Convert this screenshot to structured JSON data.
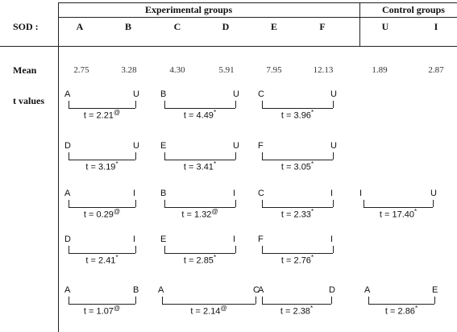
{
  "header": {
    "experimental": "Experimental groups",
    "control": "Control groups",
    "sod": "SOD :"
  },
  "columns": [
    "A",
    "B",
    "C",
    "D",
    "E",
    "F",
    "U",
    "I"
  ],
  "mean": {
    "label": "Mean",
    "values": [
      "2.75",
      "3.28",
      "4.30",
      "5.91",
      "7.95",
      "12.13",
      "1.89",
      "2.87"
    ]
  },
  "t_label": "t values",
  "comparisons": [
    [
      {
        "left": "A",
        "right": "U",
        "t": "t = 2.21@"
      },
      {
        "left": "B",
        "right": "U",
        "t": "t = 4.49*"
      },
      {
        "left": "C",
        "right": "U",
        "t": "t = 3.96*"
      }
    ],
    [
      {
        "left": "D",
        "right": "U",
        "t": "t = 3.19*"
      },
      {
        "left": "E",
        "right": "U",
        "t": "t = 3.41*"
      },
      {
        "left": "F",
        "right": "U",
        "t": "t = 3.05*"
      }
    ],
    [
      {
        "left": "A",
        "right": "I",
        "t": "t = 0.29@"
      },
      {
        "left": "B",
        "right": "I",
        "t": "t = 1.32@"
      },
      {
        "left": "C",
        "right": "I",
        "t": "t = 2.33*"
      },
      {
        "left": "I",
        "right": "U",
        "t": "t = 17.40*"
      }
    ],
    [
      {
        "left": "D",
        "right": "I",
        "t": "t = 2.41*"
      },
      {
        "left": "E",
        "right": "I",
        "t": "t = 2.85*"
      },
      {
        "left": "F",
        "right": "I",
        "t": "t = 2.76*"
      }
    ],
    [
      {
        "left": "A",
        "right": "B",
        "t": "t = 1.07@"
      },
      {
        "left": "A",
        "right": "C",
        "t": "t = 2.14@"
      },
      {
        "left": "A",
        "right": "D",
        "t": "t = 2.38*"
      },
      {
        "left": "A",
        "right": "E",
        "t": "t = 2.86*"
      }
    ]
  ]
}
